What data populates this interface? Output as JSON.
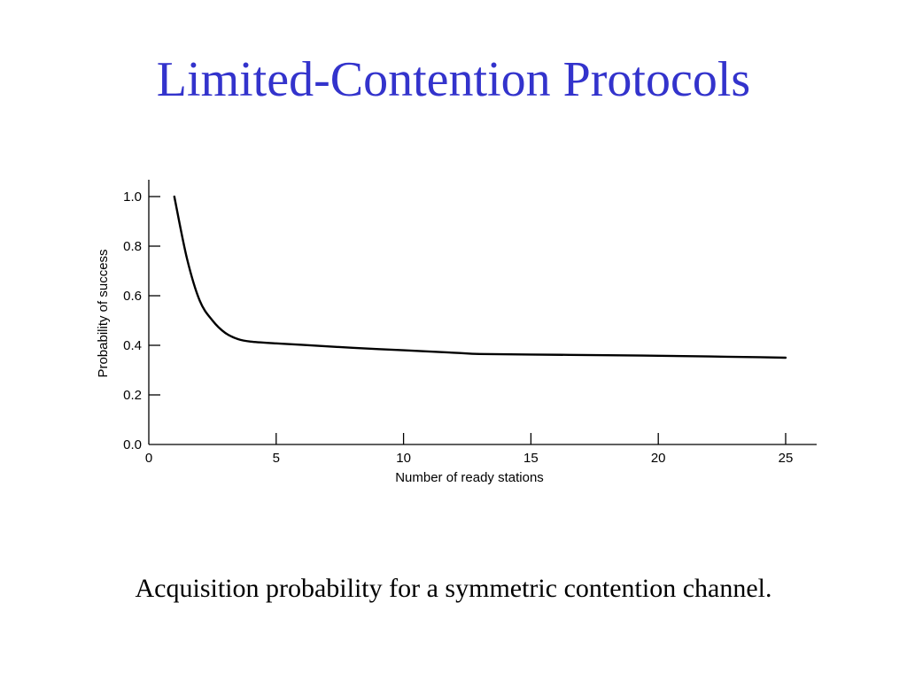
{
  "slide": {
    "title": "Limited-Contention Protocols",
    "caption": "Acquisition probability for a symmetric contention channel."
  },
  "colors": {
    "title": "#3333cc",
    "text": "#000000",
    "curve": "#000000",
    "background": "#ffffff"
  },
  "chart_data": {
    "type": "line",
    "title": "",
    "xlabel": "Number of ready stations",
    "ylabel": "Probability of success",
    "xlim": [
      0,
      25
    ],
    "ylim": [
      0,
      1.0
    ],
    "x_ticks": [
      "0",
      "5",
      "10",
      "15",
      "20",
      "25"
    ],
    "y_ticks": [
      "0.0",
      "0.2",
      "0.4",
      "0.6",
      "0.8",
      "1.0"
    ],
    "grid": false,
    "legend": "none",
    "series": [
      {
        "x": [
          1,
          1.5,
          2,
          2.5,
          3,
          3.5,
          4,
          5,
          6,
          8,
          10,
          12,
          13,
          15,
          18,
          20,
          22,
          24,
          25
        ],
        "y": [
          1.0,
          0.75,
          0.58,
          0.5,
          0.45,
          0.425,
          0.415,
          0.408,
          0.402,
          0.39,
          0.38,
          0.37,
          0.365,
          0.363,
          0.36,
          0.358,
          0.355,
          0.352,
          0.35
        ]
      }
    ]
  }
}
